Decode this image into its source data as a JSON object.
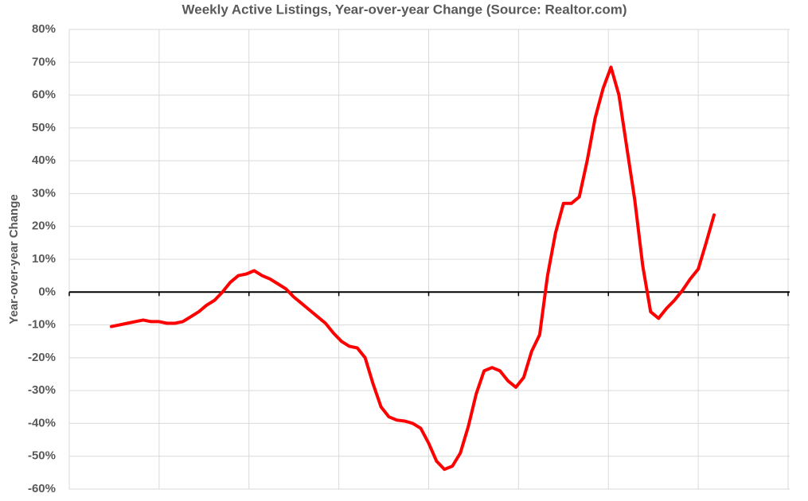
{
  "chart_data": {
    "type": "line",
    "title": "Weekly Active Listings, Year-over-year Change (Source: Realtor.com)",
    "y_label": "Year-over-year Change",
    "series": [
      {
        "color": "#ff0000",
        "values": [
          -10.5,
          -10,
          -9.5,
          -9,
          -8.5,
          -9,
          -9,
          -9.5,
          -9.5,
          -9,
          -7.5,
          -6,
          -4,
          -2.5,
          0,
          3,
          5,
          5.5,
          6.5,
          5,
          4,
          2.5,
          1,
          -1.5,
          -3.5,
          -5.5,
          -7.5,
          -9.5,
          -12.5,
          -15,
          -16.5,
          -17,
          -20,
          -28,
          -35,
          -38,
          -39,
          -39.3,
          -40,
          -41.5,
          -46,
          -51.5,
          -54,
          -53,
          -49,
          -41,
          -31,
          -24,
          -23,
          -24,
          -27,
          -29,
          -26,
          -18,
          -13,
          5,
          18,
          27,
          27,
          29,
          40,
          53,
          62,
          68.5,
          60,
          44,
          28,
          8,
          -6,
          -8,
          -5,
          -2.5,
          0.5,
          4,
          7,
          15,
          23.5
        ]
      }
    ],
    "ylim": [
      -60,
      80
    ],
    "yticks": [
      {
        "value": -60,
        "label": "-60%"
      },
      {
        "value": -50,
        "label": "-50%"
      },
      {
        "value": -40,
        "label": "-40%"
      },
      {
        "value": -30,
        "label": "-30%"
      },
      {
        "value": -20,
        "label": "-20%"
      },
      {
        "value": -10,
        "label": "-10%"
      },
      {
        "value": 0,
        "label": "0%"
      },
      {
        "value": 10,
        "label": "10%"
      },
      {
        "value": 20,
        "label": "20%"
      },
      {
        "value": 30,
        "label": "30%"
      },
      {
        "value": 40,
        "label": "40%"
      },
      {
        "value": 50,
        "label": "50%"
      },
      {
        "value": 60,
        "label": "60%"
      },
      {
        "value": 70,
        "label": "70%"
      },
      {
        "value": 80,
        "label": "80%"
      }
    ],
    "grid": true
  }
}
